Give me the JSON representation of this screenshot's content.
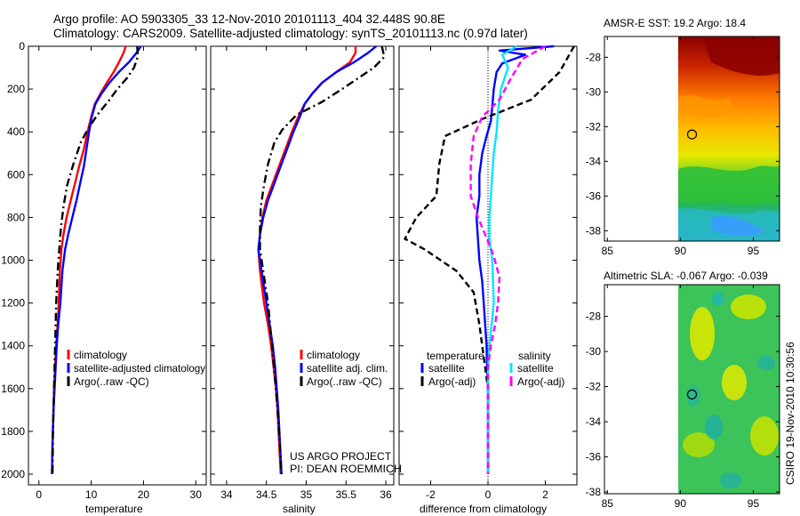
{
  "title": {
    "line1": "Argo profile: AO 5903305_33 12-Nov-2010 20101113_404 32.448S 90.8E",
    "line2": "Climatology: CARS2009. Satellite-adjusted climatology: synTS_20101113.nc (0.97d later)"
  },
  "colors": {
    "climatology": "#ff0000",
    "satellite": "#0000ff",
    "argo": "#000000",
    "satellite_sal": "#00e6ff",
    "argo_adj_sal": "#ff00ff"
  },
  "chart_data": [
    {
      "id": "temperature",
      "type": "line",
      "xlabel": "temperature",
      "xlim": [
        -2,
        32
      ],
      "ylim": [
        2050,
        0
      ],
      "xticks": [
        0,
        10,
        20,
        30
      ],
      "xtick_labels": [
        "0",
        "10",
        "20",
        "30"
      ],
      "yticks": [
        0,
        200,
        400,
        600,
        800,
        1000,
        1200,
        1400,
        1600,
        1800,
        2000
      ],
      "ytick_labels": [
        "0",
        "200",
        "400",
        "600",
        "800",
        "1000",
        "1200",
        "1400",
        "1600",
        "1800",
        "2000"
      ],
      "series": [
        {
          "name": "climatology",
          "color": "#ff0000",
          "dash": "",
          "x": [
            16.6,
            16.2,
            15.3,
            14.3,
            13.0,
            11.8,
            10.7,
            10.0,
            9.3,
            8.6,
            7.7,
            6.9,
            6.1,
            5.3,
            4.7,
            4.3,
            4.0,
            3.8,
            3.6,
            3.3,
            3.1,
            2.9,
            2.8,
            2.6,
            2.5
          ],
          "y": [
            0,
            30,
            75,
            120,
            170,
            220,
            270,
            330,
            400,
            480,
            560,
            640,
            720,
            800,
            880,
            950,
            1050,
            1200,
            1300,
            1400,
            1500,
            1600,
            1700,
            1850,
            2000
          ]
        },
        {
          "name": "satellite-adjusted climatology",
          "color": "#0000ff",
          "dash": "",
          "x": [
            19.5,
            18.7,
            17.2,
            15.3,
            13.5,
            12.0,
            10.8,
            10.1,
            9.6,
            9.1,
            8.6,
            7.9,
            7.2,
            6.4,
            5.6,
            5.0,
            4.5,
            4.1,
            3.7,
            3.4,
            3.2,
            3.0,
            2.8,
            2.6,
            2.5
          ],
          "y": [
            0,
            30,
            75,
            120,
            170,
            220,
            270,
            330,
            400,
            480,
            560,
            640,
            720,
            800,
            880,
            950,
            1050,
            1200,
            1300,
            1400,
            1500,
            1600,
            1700,
            1850,
            2000
          ]
        },
        {
          "name": "Argo(..raw -QC)",
          "color": "#000000",
          "dash": "9,4,2,4",
          "x": [
            18.8,
            18.9,
            18.2,
            16.8,
            15.0,
            13.2,
            11.2,
            9.3,
            8.0,
            6.6,
            5.4,
            4.7,
            4.2,
            3.9,
            3.6,
            3.3,
            3.1,
            2.9,
            2.7,
            2.6
          ],
          "y": [
            0,
            50,
            100,
            150,
            200,
            260,
            320,
            390,
            450,
            550,
            650,
            750,
            850,
            950,
            1050,
            1200,
            1400,
            1600,
            1800,
            2000
          ]
        }
      ]
    },
    {
      "id": "salinity",
      "type": "line",
      "xlabel": "salinity",
      "xlim": [
        33.8,
        36.1
      ],
      "ylim": [
        2050,
        0
      ],
      "xticks": [
        34,
        34.5,
        35,
        35.5,
        36
      ],
      "xtick_labels": [
        "34",
        "34.5",
        "35",
        "35.5",
        "36"
      ],
      "series": [
        {
          "name": "climatology",
          "color": "#ff0000",
          "dash": "",
          "x": [
            35.62,
            35.62,
            35.55,
            35.38,
            35.2,
            35.08,
            34.98,
            34.9,
            34.82,
            34.74,
            34.66,
            34.58,
            34.5,
            34.45,
            34.42,
            34.4,
            34.42,
            34.47,
            34.52,
            34.56,
            34.59,
            34.62,
            34.64,
            34.66,
            34.68
          ],
          "y": [
            0,
            30,
            75,
            120,
            170,
            220,
            270,
            330,
            400,
            480,
            560,
            640,
            720,
            800,
            880,
            950,
            1050,
            1200,
            1300,
            1400,
            1500,
            1600,
            1700,
            1850,
            2000
          ]
        },
        {
          "name": "satellite adj. clim.",
          "color": "#0000ff",
          "dash": "",
          "x": [
            35.88,
            35.78,
            35.6,
            35.38,
            35.2,
            35.08,
            34.98,
            34.92,
            34.84,
            34.76,
            34.68,
            34.6,
            34.52,
            34.46,
            34.42,
            34.4,
            34.44,
            34.5,
            34.54,
            34.58,
            34.61,
            34.63,
            34.65,
            34.67,
            34.69
          ],
          "y": [
            0,
            30,
            75,
            120,
            170,
            220,
            270,
            330,
            400,
            480,
            560,
            640,
            720,
            800,
            880,
            950,
            1050,
            1200,
            1300,
            1400,
            1500,
            1600,
            1700,
            1850,
            2000
          ]
        },
        {
          "name": "Argo(..raw -QC)",
          "color": "#000000",
          "dash": "9,4,2,4",
          "x": [
            35.95,
            35.98,
            35.85,
            35.65,
            35.45,
            35.2,
            34.88,
            34.7,
            34.6,
            34.52,
            34.47,
            34.43,
            34.42,
            34.42,
            34.46,
            34.52,
            34.57,
            34.62,
            34.66,
            34.69
          ],
          "y": [
            0,
            50,
            100,
            150,
            200,
            260,
            320,
            390,
            450,
            550,
            650,
            750,
            850,
            950,
            1050,
            1200,
            1400,
            1600,
            1800,
            2000
          ]
        }
      ]
    },
    {
      "id": "difference",
      "type": "line",
      "xlabel": "difference from climatology",
      "xlim": [
        -3.1,
        3.1
      ],
      "ylim": [
        2050,
        0
      ],
      "xticks": [
        -2,
        0,
        2
      ],
      "xtick_labels": [
        "-2",
        "0",
        "2"
      ],
      "series": [
        {
          "name": "satellite (temperature)",
          "color": "#0000ff",
          "dash": "",
          "x": [
            2.3,
            0.4,
            1.3,
            0.5,
            0.3,
            0.2,
            0.15,
            0.1,
            -0.05,
            -0.2,
            -0.3,
            -0.3,
            -0.4,
            -0.35,
            -0.3,
            -0.2,
            -0.15,
            -0.1,
            -0.05,
            -0.03,
            0.0,
            0.0,
            0.0,
            0.0
          ],
          "y": [
            0,
            20,
            40,
            80,
            120,
            200,
            280,
            350,
            420,
            500,
            600,
            700,
            800,
            900,
            1000,
            1100,
            1200,
            1300,
            1400,
            1500,
            1600,
            1700,
            1850,
            2000
          ]
        },
        {
          "name": "Argo(-adj) (temperature)",
          "color": "#000000",
          "dash": "7,4",
          "x": [
            3.0,
            2.5,
            1.5,
            -0.2,
            -1.5,
            -1.7,
            -1.8,
            -2.5,
            -2.9,
            -2.2,
            -1.1,
            -0.5,
            -0.3,
            -0.2,
            -0.1,
            0.0,
            0.0,
            0.0,
            0.0
          ],
          "y": [
            0,
            120,
            250,
            340,
            420,
            550,
            700,
            800,
            900,
            950,
            1050,
            1150,
            1300,
            1400,
            1500,
            1600,
            1700,
            1850,
            2000
          ]
        },
        {
          "name": "satellite (salinity)",
          "color": "#00e6ff",
          "dash": "",
          "x": [
            1.0,
            0.5,
            0.7,
            0.45,
            0.35,
            0.3,
            0.2,
            0.15,
            0.1,
            0.05,
            0.05,
            0.15,
            0.2,
            0.05,
            0.0,
            0.0,
            0.0,
            0.0,
            0.0
          ],
          "y": [
            0,
            40,
            100,
            200,
            300,
            400,
            500,
            600,
            700,
            800,
            900,
            1000,
            1200,
            1400,
            1500,
            1600,
            1700,
            1850,
            2000
          ]
        },
        {
          "name": "Argo(-adj) (salinity)",
          "color": "#ff00ff",
          "dash": "7,4",
          "x": [
            2.0,
            1.2,
            0.8,
            0.4,
            -0.2,
            -0.5,
            -0.6,
            -0.6,
            -0.35,
            -0.1,
            0.2,
            0.4,
            0.35,
            0.25,
            0.1,
            0.0,
            0.0,
            0.0,
            0.0
          ],
          "y": [
            0,
            60,
            150,
            250,
            330,
            420,
            550,
            700,
            800,
            880,
            980,
            1080,
            1200,
            1300,
            1400,
            1500,
            1600,
            1800,
            2000
          ]
        }
      ]
    }
  ],
  "legends": {
    "temperature": {
      "climatology": "climatology",
      "satellite": "satellite-adjusted climatology",
      "argo": "Argo(..raw -QC)"
    },
    "salinity": {
      "climatology": "climatology",
      "satellite": "satellite adj. clim.",
      "argo": "Argo(..raw -QC)"
    },
    "difference": {
      "temp_header": "temperature",
      "sal_header": "salinity",
      "temp_sat": "satellite",
      "temp_argo": "Argo(-adj)",
      "sal_sat": "satellite",
      "sal_argo": "Argo(-adj)"
    }
  },
  "credit": {
    "line1": "US ARGO PROJECT",
    "line2": "PI: DEAN ROEMMICH"
  },
  "maps": {
    "sst": {
      "title": "AMSR-E SST: 19.2  Argo: 18.4"
    },
    "sla": {
      "title": "Altimetric SLA: -0.067  Argo: -0.039"
    },
    "xticks": [
      85,
      90,
      95
    ],
    "xtick_labels": [
      "85",
      "90",
      "95"
    ],
    "yticks": [
      -28,
      -30,
      -32,
      -34,
      -36,
      -38
    ],
    "ytick_labels": [
      "-28",
      "-30",
      "-32",
      "-34",
      "-36",
      "-38"
    ],
    "float_position": {
      "lon": 90.8,
      "lat": -32.448
    }
  },
  "footer": {
    "stamp": "CSIRO 19-Nov-2010 10:30:56"
  }
}
